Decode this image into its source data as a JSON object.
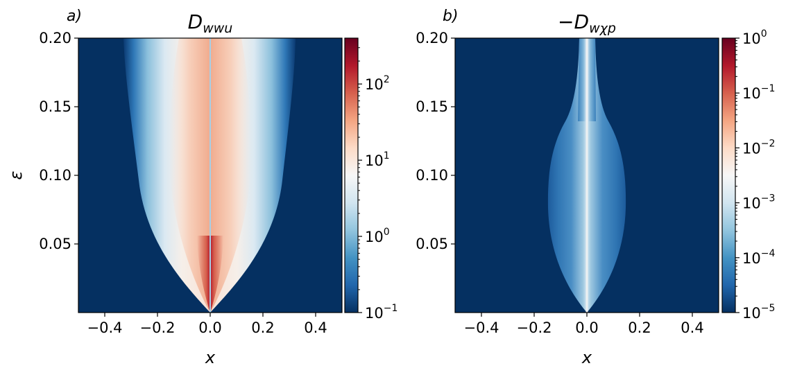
{
  "figure": {
    "colormap": {
      "name": "RdBu_r",
      "stops": [
        "#053061",
        "#2166ac",
        "#4393c3",
        "#92c5de",
        "#d1e5f0",
        "#f7f7f7",
        "#fddbc7",
        "#f4a582",
        "#d6604d",
        "#b2182b",
        "#67001f"
      ],
      "background": "#053061"
    }
  },
  "chart_data": [
    {
      "type": "heatmap",
      "panel_label": "a)",
      "title": {
        "main": "D",
        "subscript": "wwu"
      },
      "xlabel": "x",
      "ylabel": "ε",
      "xlim": [
        -0.5,
        0.5
      ],
      "ylim": [
        0.0,
        0.2
      ],
      "xticks": [
        -0.4,
        -0.2,
        0.0,
        0.2,
        0.4
      ],
      "xtick_labels": [
        "−0.4",
        "−0.2",
        "0.0",
        "0.2",
        "0.4"
      ],
      "yticks": [
        0.05,
        0.1,
        0.15,
        0.2
      ],
      "ytick_labels": [
        "0.05",
        "0.10",
        "0.15",
        "0.20"
      ],
      "colorbar": {
        "scale": "log",
        "range": [
          0.1,
          400
        ],
        "ticks": [
          {
            "value": 0.1,
            "base": "10",
            "exp": "−1"
          },
          {
            "value": 1,
            "base": "10",
            "exp": "0"
          },
          {
            "value": 10,
            "base": "10",
            "exp": "1"
          },
          {
            "value": 100,
            "base": "10",
            "exp": "2"
          }
        ]
      },
      "field": {
        "description_values": "approximate values sampled along the region",
        "envelope_halfwidth_x": [
          [
            0.0,
            0.0
          ],
          [
            0.02,
            0.11
          ],
          [
            0.05,
            0.18
          ],
          [
            0.1,
            0.25
          ],
          [
            0.15,
            0.29
          ],
          [
            0.2,
            0.33
          ]
        ],
        "centerline_values": [
          [
            0.005,
            300
          ],
          [
            0.02,
            60
          ],
          [
            0.05,
            30
          ],
          [
            0.1,
            20
          ],
          [
            0.15,
            14
          ],
          [
            0.2,
            12
          ]
        ],
        "edge_value": 0.1,
        "centerline_streak_value": 0.5
      }
    },
    {
      "type": "heatmap",
      "panel_label": "b)",
      "title": {
        "main": "−D",
        "subscript": "wχp"
      },
      "xlabel": "x",
      "ylabel": "",
      "xlim": [
        -0.5,
        0.5
      ],
      "ylim": [
        0.0,
        0.2
      ],
      "xticks": [
        -0.4,
        -0.2,
        0.0,
        0.2,
        0.4
      ],
      "xtick_labels": [
        "−0.4",
        "−0.2",
        "0.0",
        "0.2",
        "0.4"
      ],
      "yticks": [
        0.05,
        0.1,
        0.15,
        0.2
      ],
      "ytick_labels": [
        "0.05",
        "0.10",
        "0.15",
        "0.20"
      ],
      "colorbar": {
        "scale": "log",
        "range": [
          1e-05,
          1
        ],
        "ticks": [
          {
            "value": 1e-05,
            "base": "10",
            "exp": "−5"
          },
          {
            "value": 0.0001,
            "base": "10",
            "exp": "−4"
          },
          {
            "value": 0.001,
            "base": "10",
            "exp": "−3"
          },
          {
            "value": 0.01,
            "base": "10",
            "exp": "−2"
          },
          {
            "value": 0.1,
            "base": "10",
            "exp": "−1"
          },
          {
            "value": 1,
            "base": "10",
            "exp": "0"
          }
        ]
      },
      "field": {
        "envelope_halfwidth_x": [
          [
            0.0,
            0.0
          ],
          [
            0.02,
            0.07
          ],
          [
            0.05,
            0.12
          ],
          [
            0.08,
            0.14
          ],
          [
            0.11,
            0.14
          ],
          [
            0.14,
            0.1
          ],
          [
            0.16,
            0.04
          ],
          [
            0.2,
            0.02
          ]
        ],
        "centerline_values": [
          [
            0.005,
            0.001
          ],
          [
            0.05,
            0.0005
          ],
          [
            0.1,
            0.0002
          ],
          [
            0.15,
            0.0004
          ],
          [
            0.2,
            0.0005
          ]
        ],
        "edge_value": 1e-05,
        "center_streak_value": 0.001
      }
    }
  ]
}
